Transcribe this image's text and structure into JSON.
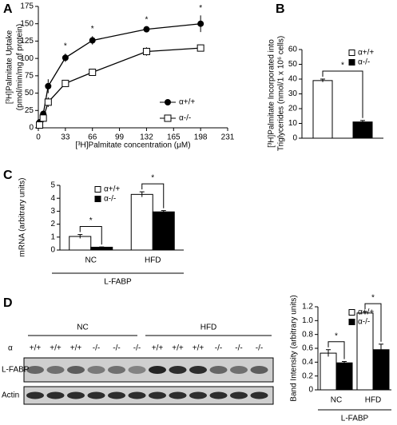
{
  "chart_data": [
    {
      "type": "line",
      "panel_label": "A",
      "ylabel": [
        "[³H]Palmitate Uptake",
        "(pmol/min/mg of protein)"
      ],
      "xlabel": "[³H]Palmitate concentration (μM)",
      "x": [
        1.5,
        6,
        12,
        33,
        66,
        132,
        198
      ],
      "xlim": [
        0,
        231
      ],
      "xticks": [
        0,
        33,
        66,
        99,
        132,
        165,
        198,
        231
      ],
      "ylim": [
        0,
        175
      ],
      "yticks": [
        0,
        25,
        50,
        75,
        100,
        125,
        150,
        175
      ],
      "series": [
        {
          "name": "α+/+",
          "color": "#000000",
          "marker": "circle",
          "values": [
            8,
            20,
            60,
            101,
            126,
            142,
            150
          ],
          "errors": [
            3,
            5,
            10,
            6,
            6,
            3,
            12
          ]
        },
        {
          "name": "α-/-",
          "color": "#000000",
          "marker": "square",
          "values": [
            4,
            14,
            37,
            64,
            80,
            110,
            115
          ],
          "errors": [
            3,
            6,
            7,
            5,
            5,
            6,
            5
          ]
        }
      ],
      "annotations": [
        "*",
        "*",
        "*",
        "*"
      ],
      "legend": "lower right"
    },
    {
      "type": "bar",
      "panel_label": "B",
      "ylabel": [
        "[³H]Palmitate Incorporated into",
        "Triglycerides (nmol/1 x 10⁶ cells)"
      ],
      "categories": [
        null
      ],
      "ylim": [
        0,
        60
      ],
      "yticks": [
        0,
        10,
        20,
        30,
        40,
        50,
        60
      ],
      "series": [
        {
          "name": "α+/+",
          "color": "#ffffff",
          "values": [
            39
          ],
          "errors": [
            1
          ]
        },
        {
          "name": "α-/-",
          "color": "#000000",
          "values": [
            11
          ],
          "errors": [
            1
          ]
        }
      ],
      "annotations": [
        "*"
      ],
      "legend": "upper right"
    },
    {
      "type": "bar",
      "panel_label": "C",
      "ylabel": [
        "mRNA (arbitrary units)"
      ],
      "categories": [
        "NC",
        "HFD"
      ],
      "group_label": "L-FABP",
      "ylim": [
        0,
        5
      ],
      "yticks": [
        0,
        1,
        2,
        3,
        4,
        5
      ],
      "series": [
        {
          "name": "α+/+",
          "color": "#ffffff",
          "values": [
            1.05,
            4.3
          ],
          "errors": [
            0.15,
            0.2
          ]
        },
        {
          "name": "α-/-",
          "color": "#000000",
          "values": [
            0.22,
            2.95
          ],
          "errors": [
            0.02,
            0.1
          ]
        }
      ],
      "annotations": [
        "*",
        "*"
      ],
      "legend": "upper left"
    },
    {
      "type": "bar",
      "ylabel": [
        "Band Intensity (arbitrary units)"
      ],
      "categories": [
        "NC",
        "HFD"
      ],
      "group_label": "L-FABP",
      "ylim": [
        0,
        1.2
      ],
      "yticks": [
        0,
        0.2,
        0.4,
        0.6,
        0.8,
        {
          "value": 1,
          "label": "1.0"
        },
        1.2
      ],
      "series": [
        {
          "name": "α+/+",
          "color": "#ffffff",
          "values": [
            0.53,
            1.11
          ],
          "errors": [
            0.05,
            0.02
          ]
        },
        {
          "name": "α-/-",
          "color": "#000000",
          "values": [
            0.39,
            0.58
          ],
          "errors": [
            0.02,
            0.08
          ]
        }
      ],
      "annotations": [
        "*",
        "*"
      ],
      "legend": "upper right"
    }
  ],
  "blot": {
    "panel_label": "D",
    "groups": [
      "NC",
      "HFD"
    ],
    "genotype_label": "α",
    "lanes": [
      "+/+",
      "+/+",
      "+/+",
      "-/-",
      "-/-",
      "-/-",
      "+/+",
      "+/+",
      "+/+",
      "-/-",
      "-/-",
      "-/-"
    ],
    "rows": [
      "L-FABP",
      "Actin"
    ]
  }
}
